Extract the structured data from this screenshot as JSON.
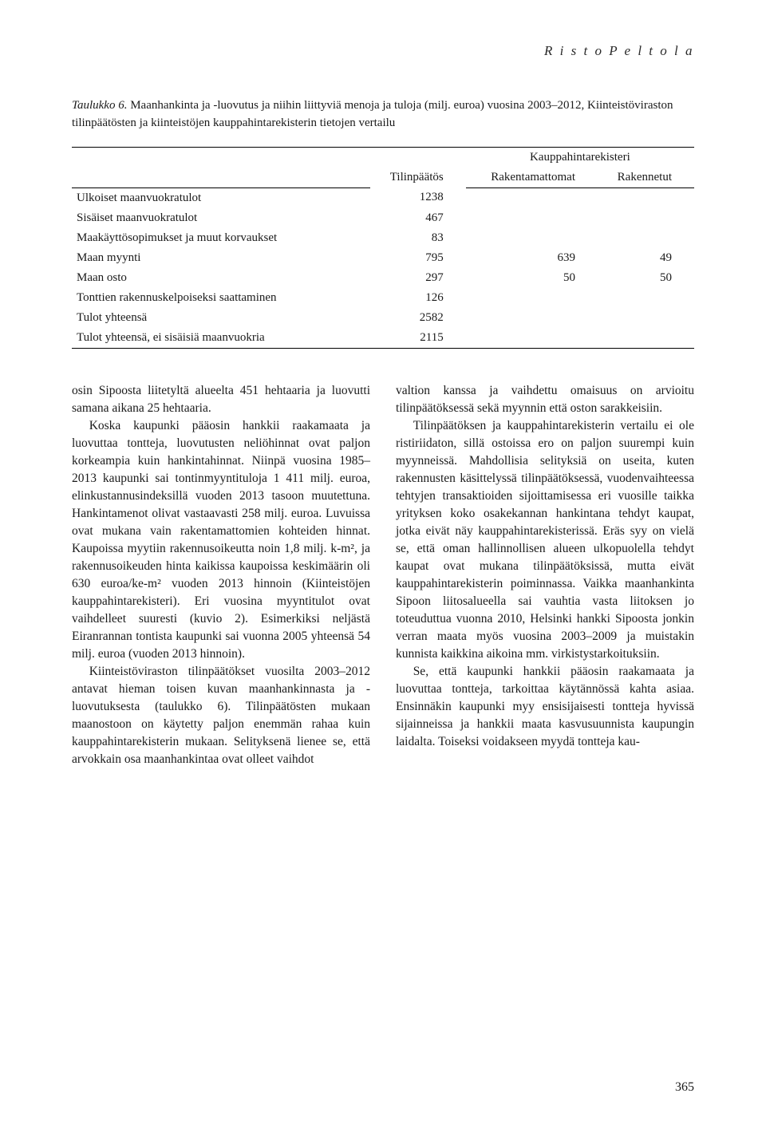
{
  "running_head": "R i s t o  P e l t o l a",
  "table": {
    "caption_label": "Taulukko 6.",
    "caption_text": "Maanhankinta ja -luovutus ja niihin liittyviä menoja ja tuloja (milj. euroa) vuosina 2003–2012, Kiinteistöviraston tilinpäätösten ja kiinteistöjen kauppahintarekisterin tietojen vertailu",
    "headers": {
      "col1": "",
      "col2": "Tilinpäätös",
      "col34": "Kauppahintarekisteri",
      "col3": "Rakentamattomat",
      "col4": "Rakennetut"
    },
    "rows": [
      {
        "label": "Ulkoiset maanvuokratulot",
        "v1": "1238",
        "v2": "",
        "v3": ""
      },
      {
        "label": "Sisäiset maanvuokratulot",
        "v1": "467",
        "v2": "",
        "v3": ""
      },
      {
        "label": "Maakäyttösopimukset ja muut korvaukset",
        "v1": "83",
        "v2": "",
        "v3": ""
      },
      {
        "label": "Maan myynti",
        "v1": "795",
        "v2": "639",
        "v3": "49"
      },
      {
        "label": "Maan osto",
        "v1": "297",
        "v2": "50",
        "v3": "50"
      },
      {
        "label": "Tonttien rakennuskelpoiseksi saattaminen",
        "v1": "126",
        "v2": "",
        "v3": ""
      },
      {
        "label": "Tulot yhteensä",
        "v1": "2582",
        "v2": "",
        "v3": ""
      },
      {
        "label": "Tulot yhteensä, ei sisäisiä maanvuokria",
        "v1": "2115",
        "v2": "",
        "v3": ""
      }
    ]
  },
  "left": {
    "p1": "osin Sipoosta liitetyltä alueelta 451 hehtaaria ja luovutti samana aikana 25 hehtaaria.",
    "p2": "Koska kaupunki pääosin hankkii raakamaata ja luovuttaa tontteja, luovutusten neliöhinnat ovat paljon korkeampia kuin hankintahinnat. Niinpä vuosina 1985–2013 kaupunki sai tontinmyyntituloja 1 411 milj. euroa, elinkustannusindeksillä vuoden 2013 tasoon muutettuna. Hankintamenot olivat vastaavasti 258 milj. euroa. Luvuissa ovat mukana vain rakentamattomien kohteiden hinnat. Kaupoissa myytiin rakennusoikeutta noin 1,8 milj. k-m², ja rakennusoikeuden hinta kaikissa kaupoissa keskimäärin oli 630 euroa/ke-m² vuoden 2013 hinnoin (Kiinteistöjen kauppahintarekisteri). Eri vuosina myyntitulot ovat vaihdelleet suuresti (kuvio 2). Esimerkiksi neljästä Eiranrannan tontista kaupunki sai vuonna 2005 yhteensä 54 milj. euroa (vuoden 2013 hinnoin).",
    "p3": "Kiinteistöviraston tilinpäätökset vuosilta 2003–2012 antavat hieman toisen kuvan maanhankinnasta ja -luovutuksesta (taulukko 6). Tilinpäätösten mukaan maanostoon on käytetty paljon enemmän rahaa kuin kauppahintarekisterin mukaan. Selityksenä lienee se, että arvokkain osa maanhankintaa ovat olleet vaihdot"
  },
  "right": {
    "p1": "valtion kanssa ja vaihdettu omaisuus on arvioitu tilinpäätöksessä sekä myynnin että oston sarakkeisiin.",
    "p2": "Tilinpäätöksen ja kauppahintarekisterin vertailu ei ole ristiriidaton, sillä ostoissa ero on paljon suurempi kuin myynneissä. Mahdollisia selityksiä on useita, kuten rakennusten käsittelyssä tilinpäätöksessä, vuodenvaihteessa tehtyjen transaktioiden sijoittamisessa eri vuosille taikka yrityksen koko osakekannan hankintana tehdyt kaupat, jotka eivät näy kauppahintarekisterissä. Eräs syy on vielä se, että oman hallinnollisen alueen ulkopuolella tehdyt kaupat ovat mukana tilinpäätöksissä, mutta eivät kauppahintarekisterin poiminnassa. Vaikka maanhankinta Sipoon liitosalueella sai vauhtia vasta liitoksen jo toteuduttua vuonna 2010, Helsinki hankki Sipoosta jonkin verran maata myös vuosina 2003–2009 ja muistakin kunnista kaikkina aikoina mm. virkistystarkoituksiin.",
    "p3": "Se, että kaupunki hankkii pääosin raakamaata ja luovuttaa tontteja, tarkoittaa käytännössä kahta asiaa. Ensinnäkin kaupunki myy ensisijaisesti tontteja hyvissä sijainneissa ja hankkii maata kasvusuunnista kaupungin laidalta. Toiseksi voidakseen myydä tontteja kau-"
  },
  "page_number": "365"
}
